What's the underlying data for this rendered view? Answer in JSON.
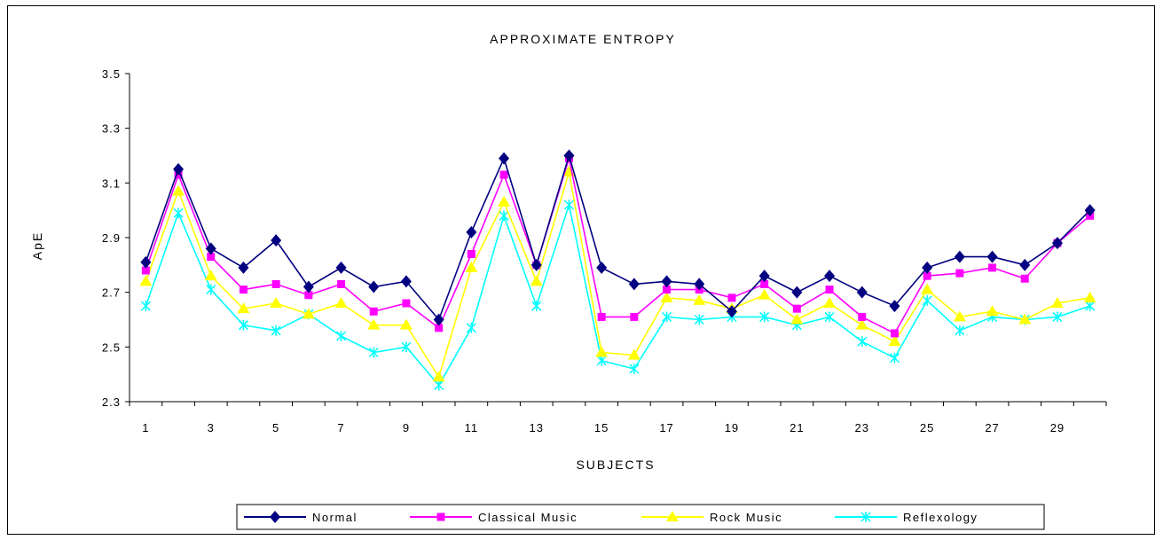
{
  "chart_data": {
    "type": "line",
    "title": "APPROXIMATE ENTROPY",
    "xlabel": "SUBJECTS",
    "ylabel": "ApE",
    "ylim": [
      2.3,
      3.5
    ],
    "yticks": [
      "2.3",
      "2.5",
      "2.7",
      "2.9",
      "3.1",
      "3.3",
      "3.5"
    ],
    "xticks": [
      "1",
      "3",
      "5",
      "7",
      "9",
      "11",
      "13",
      "15",
      "17",
      "19",
      "21",
      "23",
      "25",
      "27",
      "29"
    ],
    "x": [
      1,
      2,
      3,
      4,
      5,
      6,
      7,
      8,
      9,
      10,
      11,
      12,
      13,
      14,
      15,
      16,
      17,
      18,
      19,
      20,
      21,
      22,
      23,
      24,
      25,
      26,
      27,
      28,
      29,
      30
    ],
    "grid": false,
    "legend_position": "bottom",
    "series": [
      {
        "name": "Normal",
        "color": "#000080",
        "marker": "diamond",
        "values": [
          2.81,
          3.15,
          2.86,
          2.79,
          2.89,
          2.72,
          2.79,
          2.72,
          2.74,
          2.6,
          2.92,
          3.19,
          2.8,
          3.2,
          2.79,
          2.73,
          2.74,
          2.73,
          2.63,
          2.76,
          2.7,
          2.76,
          2.7,
          2.65,
          2.79,
          2.83,
          2.83,
          2.8,
          2.88,
          3.0
        ]
      },
      {
        "name": "Classical Music",
        "color": "#ff00ff",
        "marker": "square",
        "values": [
          2.78,
          3.13,
          2.83,
          2.71,
          2.73,
          2.69,
          2.73,
          2.63,
          2.66,
          2.57,
          2.84,
          3.13,
          2.8,
          3.19,
          2.61,
          2.61,
          2.71,
          2.71,
          2.68,
          2.73,
          2.64,
          2.71,
          2.61,
          2.55,
          2.76,
          2.77,
          2.79,
          2.75,
          2.88,
          2.98
        ]
      },
      {
        "name": "Rock Music",
        "color": "#ffff00",
        "marker": "triangle",
        "values": [
          2.74,
          3.07,
          2.76,
          2.64,
          2.66,
          2.62,
          2.66,
          2.58,
          2.58,
          2.39,
          2.79,
          3.03,
          2.74,
          3.14,
          2.48,
          2.47,
          2.68,
          2.67,
          2.64,
          2.69,
          2.6,
          2.66,
          2.58,
          2.52,
          2.71,
          2.61,
          2.63,
          2.6,
          2.66,
          2.68
        ]
      },
      {
        "name": "Reflexology",
        "color": "#00ffff",
        "marker": "x",
        "values": [
          2.65,
          2.99,
          2.71,
          2.58,
          2.56,
          2.62,
          2.54,
          2.48,
          2.5,
          2.36,
          2.57,
          2.98,
          2.65,
          3.02,
          2.45,
          2.42,
          2.61,
          2.6,
          2.61,
          2.61,
          2.58,
          2.61,
          2.52,
          2.46,
          2.67,
          2.56,
          2.61,
          2.6,
          2.61,
          2.65
        ]
      }
    ]
  }
}
